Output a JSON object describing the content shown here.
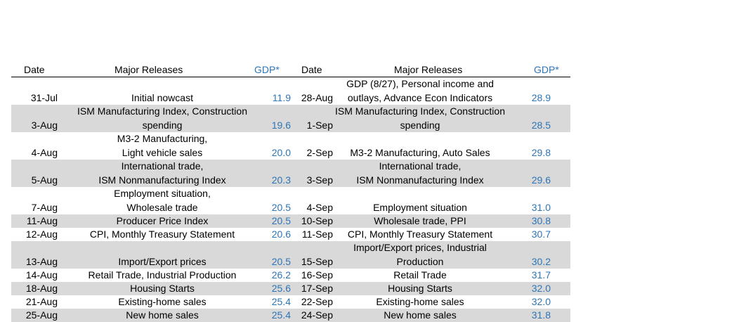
{
  "header": {
    "date_left": "Date",
    "releases_left": "Major Releases",
    "gdp_left": "GDP*",
    "date_right": "Date",
    "releases_right": "Major Releases",
    "gdp_right": "GDP*"
  },
  "colors": {
    "gdp_value": "#2e75b6",
    "row_shade": "#d9d9d9"
  },
  "rows": [
    {
      "date_left": "31-Jul",
      "releases_left": [
        "Initial nowcast"
      ],
      "gdp_left": "11.9",
      "date_right": "28-Aug",
      "releases_right": [
        "GDP (8/27), Personal income and",
        "outlays, Advance Econ Indicators"
      ],
      "gdp_right": "28.9"
    },
    {
      "date_left": "3-Aug",
      "releases_left": [
        "ISM Manufacturing Index, Construction",
        "spending"
      ],
      "gdp_left": "19.6",
      "date_right": "1-Sep",
      "releases_right": [
        "ISM Manufacturing Index, Construction",
        "spending"
      ],
      "gdp_right": "28.5"
    },
    {
      "date_left": "4-Aug",
      "releases_left": [
        "M3-2 Manufacturing,",
        "Light vehicle sales"
      ],
      "gdp_left": "20.0",
      "date_right": "2-Sep",
      "releases_right": [
        "M3-2 Manufacturing, Auto Sales"
      ],
      "gdp_right": "29.8"
    },
    {
      "date_left": "5-Aug",
      "releases_left": [
        "International trade,",
        "ISM Nonmanufacturing Index"
      ],
      "gdp_left": "20.3",
      "date_right": "3-Sep",
      "releases_right": [
        "International trade,",
        "ISM Nonmanufacturing Index"
      ],
      "gdp_right": "29.6"
    },
    {
      "date_left": "7-Aug",
      "releases_left": [
        "Employment situation,",
        "Wholesale trade"
      ],
      "gdp_left": "20.5",
      "date_right": "4-Sep",
      "releases_right": [
        "Employment situation"
      ],
      "gdp_right": "31.0"
    },
    {
      "date_left": "11-Aug",
      "releases_left": [
        "Producer Price Index"
      ],
      "gdp_left": "20.5",
      "date_right": "10-Sep",
      "releases_right": [
        "Wholesale trade, PPI"
      ],
      "gdp_right": "30.8"
    },
    {
      "date_left": "12-Aug",
      "releases_left": [
        "CPI, Monthly Treasury Statement"
      ],
      "gdp_left": "20.6",
      "date_right": "11-Sep",
      "releases_right": [
        "CPI, Monthly Treasury Statement"
      ],
      "gdp_right": "30.7"
    },
    {
      "date_left": "13-Aug",
      "releases_left": [
        "Import/Export prices"
      ],
      "gdp_left": "20.5",
      "date_right": "15-Sep",
      "releases_right": [
        "Import/Export prices, Industrial",
        "Production"
      ],
      "gdp_right": "30.2"
    },
    {
      "date_left": "14-Aug",
      "releases_left": [
        "Retail Trade, Industrial Production"
      ],
      "gdp_left": "26.2",
      "date_right": "16-Sep",
      "releases_right": [
        "Retail Trade"
      ],
      "gdp_right": "31.7"
    },
    {
      "date_left": "18-Aug",
      "releases_left": [
        "Housing Starts"
      ],
      "gdp_left": "25.6",
      "date_right": "17-Sep",
      "releases_right": [
        "Housing Starts"
      ],
      "gdp_right": "32.0"
    },
    {
      "date_left": "21-Aug",
      "releases_left": [
        "Existing-home sales"
      ],
      "gdp_left": "25.4",
      "date_right": "22-Sep",
      "releases_right": [
        "Existing-home sales"
      ],
      "gdp_right": "32.0"
    },
    {
      "date_left": "25-Aug",
      "releases_left": [
        "New home sales"
      ],
      "gdp_left": "25.4",
      "date_right": "24-Sep",
      "releases_right": [
        "New home sales"
      ],
      "gdp_right": "31.8"
    }
  ]
}
